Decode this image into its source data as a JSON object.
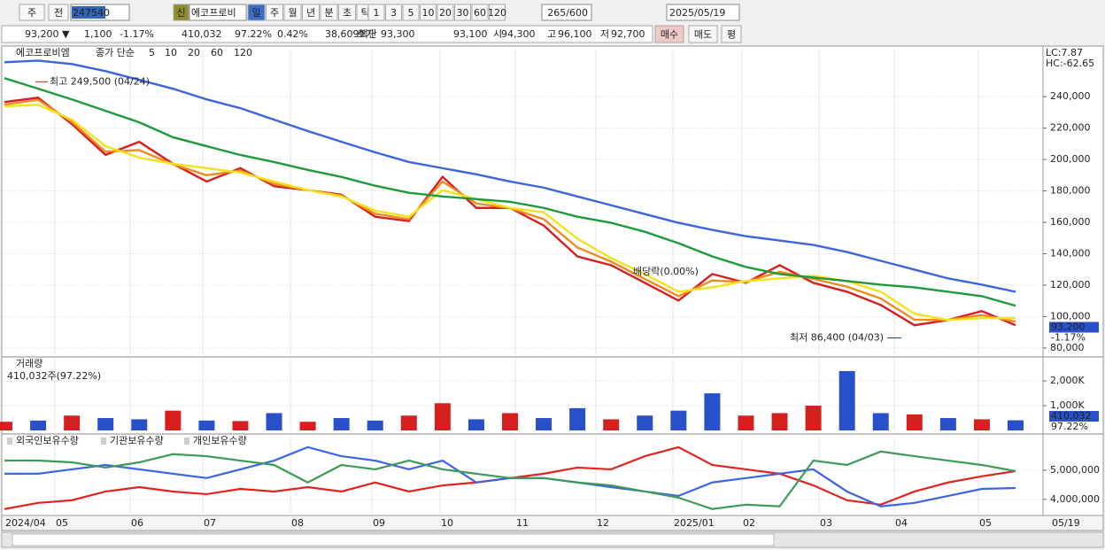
{
  "toolbar": {
    "market": "주",
    "prev": "전",
    "code": "247540",
    "new_badge": "신",
    "stock_name": "에코프로비",
    "periods": [
      "일",
      "주",
      "월",
      "년",
      "분",
      "초",
      "틱"
    ],
    "intervals": [
      "1",
      "3",
      "5",
      "10",
      "20",
      "30",
      "60",
      "120"
    ],
    "count": "265/600",
    "date": "2025/05/19"
  },
  "quote": {
    "price": "93,200 ▼",
    "change": "1,100",
    "change_pct": "-1.17%",
    "volume": "410,032",
    "volume_pct": "97.22%",
    "turnover": "0.42%",
    "amount": "38,609백만",
    "ask_label": "호가",
    "ask": "93,300",
    "bid": "93,100",
    "open_label": "시",
    "open": "94,300",
    "high_label": "고",
    "high": "96,100",
    "low_label": "저",
    "low": "92,700",
    "buy": "매수",
    "sell": "매도",
    "avg": "평"
  },
  "x_axis": [
    "2024/04",
    "05",
    "06",
    "07",
    "08",
    "09",
    "10",
    "11",
    "12",
    "2025/01",
    "02",
    "03",
    "04",
    "05",
    "05/19"
  ],
  "chart_data": [
    {
      "type": "line",
      "title": "에코프로비엠",
      "subtitle": "종가 단순",
      "series": [
        {
          "name": "5",
          "color": "#d61f1f",
          "values": [
            236600,
            239400,
            222600,
            203000,
            211300,
            197300,
            186000,
            194500,
            183000,
            180500,
            177600,
            163600,
            160800,
            189000,
            169200,
            169200,
            158000,
            138300,
            132700,
            121500,
            110200,
            127100,
            121500,
            132700,
            121500,
            115800,
            107400,
            94500,
            97800,
            103500,
            94500
          ]
        },
        {
          "name": "10",
          "color": "#f08c1e",
          "values": [
            235000,
            238000,
            224000,
            205000,
            206000,
            197000,
            190000,
            193000,
            184500,
            180500,
            177000,
            165500,
            162000,
            186000,
            172000,
            169000,
            162000,
            144000,
            135000,
            124000,
            113000,
            123000,
            122000,
            128500,
            124000,
            119000,
            111500,
            98000,
            97800,
            101000,
            96800
          ]
        },
        {
          "name": "20",
          "color": "#f2e21e",
          "values": [
            233800,
            234900,
            225400,
            208500,
            201200,
            197300,
            194500,
            191700,
            186000,
            180500,
            176500,
            167500,
            163600,
            180500,
            174800,
            169200,
            166400,
            149600,
            137200,
            127100,
            115800,
            118600,
            122600,
            124300,
            126000,
            122600,
            115800,
            101800,
            97800,
            99000,
            99000
          ]
        },
        {
          "name": "60",
          "color": "#1f9a3a",
          "values": [
            251800,
            245100,
            238300,
            231000,
            223700,
            214200,
            208500,
            202900,
            198400,
            193400,
            188900,
            183300,
            178800,
            176500,
            174800,
            173100,
            169200,
            163600,
            159700,
            154000,
            146700,
            138300,
            131600,
            127100,
            124900,
            122600,
            120300,
            118600,
            115800,
            113000,
            106900
          ]
        },
        {
          "name": "120",
          "color": "#3c64dc",
          "values": [
            261900,
            263000,
            260800,
            256300,
            250700,
            245100,
            238300,
            232700,
            225400,
            218100,
            211300,
            204600,
            198400,
            194500,
            190600,
            186000,
            182100,
            176500,
            170900,
            165300,
            159700,
            155200,
            151200,
            148400,
            145600,
            141100,
            135500,
            129900,
            124300,
            120300,
            115800
          ]
        }
      ],
      "ylim": [
        76000,
        270000
      ],
      "yticks": [
        {
          "value": 240000,
          "label": "240,000"
        },
        {
          "value": 220000,
          "label": "220,000"
        },
        {
          "value": 200000,
          "label": "200,000"
        },
        {
          "value": 180000,
          "label": "180,000"
        },
        {
          "value": 160000,
          "label": "160,000"
        },
        {
          "value": 140000,
          "label": "140,000"
        },
        {
          "value": 120000,
          "label": "120,000"
        },
        {
          "value": 100000,
          "label": "100,000"
        },
        {
          "value": 80000,
          "label": "80,000"
        }
      ],
      "grid": true,
      "max_label": {
        "value": 249500,
        "label": "최고 249,500 (04/24)"
      },
      "min_label": {
        "value": 86400,
        "label": "최저 86,400 (04/03)"
      },
      "dividend": "배당락(0.00%)",
      "lc": "LC:7.87",
      "hc": "HC:-62.65",
      "current": {
        "value": 93200,
        "label": "93,200"
      },
      "current_pct": "-1.17%"
    },
    {
      "type": "bar",
      "title": "거래량",
      "subtitle": "410,032주(97.22%)",
      "values": [
        350,
        400,
        600,
        500,
        450,
        800,
        400,
        380,
        700,
        350,
        500,
        400,
        600,
        1100,
        450,
        700,
        500,
        900,
        450,
        600,
        800,
        1500,
        600,
        700,
        1000,
        2400,
        700,
        650,
        500,
        450,
        410
      ],
      "colors": [
        "#d61f1f",
        "#2850c8",
        "#d61f1f",
        "#2850c8",
        "#2850c8",
        "#d61f1f",
        "#2850c8",
        "#d61f1f",
        "#2850c8",
        "#d61f1f",
        "#2850c8",
        "#2850c8",
        "#d61f1f",
        "#d61f1f",
        "#2850c8",
        "#d61f1f",
        "#2850c8",
        "#2850c8",
        "#d61f1f",
        "#2850c8",
        "#2850c8",
        "#2850c8",
        "#d61f1f",
        "#d61f1f",
        "#d61f1f",
        "#2850c8",
        "#2850c8",
        "#d61f1f",
        "#2850c8",
        "#d61f1f",
        "#2850c8"
      ],
      "ylim": [
        0,
        2900
      ],
      "yticks": [
        {
          "value": 2000,
          "label": "2,000K"
        },
        {
          "value": 1000,
          "label": "1,000K"
        }
      ],
      "last": "410,032",
      "last_pct": "97.22%"
    },
    {
      "type": "line",
      "series": [
        {
          "name": "외국인보유수량",
          "color": "#e0241e",
          "values": [
            3670000,
            3880000,
            3970000,
            4270000,
            4420000,
            4270000,
            4180000,
            4360000,
            4270000,
            4420000,
            4270000,
            4580000,
            4270000,
            4480000,
            4580000,
            4730000,
            4880000,
            5090000,
            5030000,
            5480000,
            5790000,
            5180000,
            5030000,
            4880000,
            4480000,
            3970000,
            3820000,
            4270000,
            4580000,
            4790000,
            4970000
          ]
        },
        {
          "name": "기관보유수량",
          "color": "#3c64e6",
          "values": [
            4880000,
            4880000,
            5030000,
            5180000,
            5030000,
            4880000,
            4730000,
            5030000,
            5330000,
            5790000,
            5480000,
            5330000,
            5030000,
            5330000,
            4580000,
            4730000,
            4730000,
            4580000,
            4420000,
            4270000,
            4120000,
            4580000,
            4730000,
            4880000,
            5030000,
            4270000,
            3760000,
            3880000,
            4120000,
            4360000,
            4390000
          ]
        },
        {
          "name": "개인보유수량",
          "color": "#3c9a5a",
          "values": [
            5330000,
            5330000,
            5270000,
            5090000,
            5270000,
            5550000,
            5480000,
            5330000,
            5180000,
            4580000,
            5180000,
            5030000,
            5330000,
            5030000,
            4880000,
            4730000,
            4730000,
            4580000,
            4480000,
            4270000,
            4060000,
            3670000,
            3820000,
            3760000,
            5330000,
            5180000,
            5640000,
            5480000,
            5330000,
            5180000,
            4970000
          ]
        }
      ],
      "ylim": [
        3450000,
        6150000
      ],
      "yticks": [
        {
          "value": 5000000,
          "label": "5,000,000"
        },
        {
          "value": 4000000,
          "label": "4,000,000"
        }
      ],
      "grid": true
    }
  ]
}
